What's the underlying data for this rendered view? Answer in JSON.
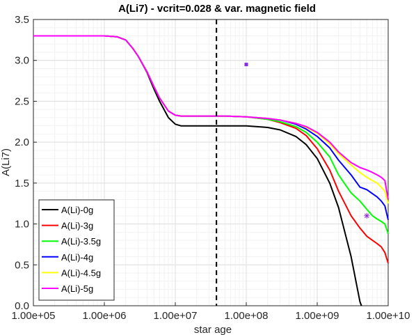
{
  "chart_data": {
    "type": "line",
    "title": "A(Li7) - vcrit=0.028 & var. magnetic field",
    "xlabel": "star age",
    "ylabel": "A(Li7)",
    "xscale": "log",
    "xlim": [
      100000,
      10000000000
    ],
    "ylim": [
      0,
      3.5
    ],
    "x_ticks": [
      100000,
      1000000,
      10000000,
      100000000,
      1000000000,
      10000000000
    ],
    "x_tick_labels": [
      "1.00e+05",
      "1.00e+06",
      "1.00e+07",
      "1.00e+08",
      "1.00e+09",
      "1.00e+10"
    ],
    "y_ticks": [
      0,
      0.5,
      1,
      1.5,
      2,
      2.5,
      3,
      3.5
    ],
    "y_tick_labels": [
      "0.0",
      "0.5",
      "1.0",
      "1.5",
      "2.0",
      "2.5",
      "3.0",
      "3.5"
    ],
    "grid": true,
    "legend_position": "bottom-left",
    "vline": {
      "x": 38000000,
      "style": "dashed",
      "color": "#000000"
    },
    "markers": [
      {
        "x": 100000000,
        "y": 2.95,
        "symbol": "square",
        "color": "#8a2be2"
      },
      {
        "x": 5000000000,
        "y": 1.1,
        "symbol": "asterisk",
        "color": "#8a2be2"
      }
    ],
    "series": [
      {
        "name": "A(Li)-0g",
        "color": "#000000",
        "x": [
          100000,
          1000000,
          1500000,
          2000000,
          2500000,
          3000000,
          4000000,
          5000000,
          6000000,
          8000000,
          10000000,
          12000000,
          15000000,
          20000000,
          30000000,
          50000000,
          100000000,
          200000000,
          300000000,
          500000000,
          700000000,
          1000000000,
          1500000000,
          2000000000,
          3000000000,
          4000000000,
          4200000000
        ],
        "values": [
          3.3,
          3.3,
          3.29,
          3.25,
          3.15,
          3.05,
          2.85,
          2.65,
          2.5,
          2.3,
          2.22,
          2.2,
          2.2,
          2.2,
          2.2,
          2.2,
          2.2,
          2.18,
          2.15,
          2.07,
          1.97,
          1.8,
          1.5,
          1.2,
          0.6,
          0.05,
          0
        ]
      },
      {
        "name": "A(Li)-3g",
        "color": "#ff0000",
        "x": [
          100000,
          1000000,
          1500000,
          2000000,
          2500000,
          3000000,
          4000000,
          5000000,
          6000000,
          8000000,
          10000000,
          12000000,
          15000000,
          20000000,
          30000000,
          50000000,
          100000000,
          200000000,
          300000000,
          500000000,
          700000000,
          1000000000,
          1500000000,
          2000000000,
          3000000000,
          4000000000,
          5000000000,
          6000000000,
          7000000000,
          8000000000,
          9000000000,
          10000000000
        ],
        "values": [
          3.3,
          3.3,
          3.29,
          3.25,
          3.15,
          3.05,
          2.86,
          2.68,
          2.54,
          2.38,
          2.33,
          2.32,
          2.32,
          2.32,
          2.32,
          2.32,
          2.31,
          2.28,
          2.24,
          2.17,
          2.08,
          1.92,
          1.66,
          1.4,
          1.1,
          0.95,
          0.85,
          0.8,
          0.76,
          0.72,
          0.65,
          0.52
        ]
      },
      {
        "name": "A(Li)-3.5g",
        "color": "#00ff00",
        "x": [
          100000,
          1000000,
          1500000,
          2000000,
          2500000,
          3000000,
          4000000,
          5000000,
          6000000,
          8000000,
          10000000,
          12000000,
          15000000,
          20000000,
          30000000,
          50000000,
          100000000,
          200000000,
          300000000,
          500000000,
          700000000,
          1000000000,
          1500000000,
          2000000000,
          3000000000,
          4000000000,
          5000000000,
          6000000000,
          7000000000,
          8000000000,
          9000000000,
          10000000000
        ],
        "values": [
          3.3,
          3.3,
          3.29,
          3.25,
          3.15,
          3.05,
          2.86,
          2.68,
          2.54,
          2.38,
          2.33,
          2.32,
          2.32,
          2.32,
          2.32,
          2.32,
          2.31,
          2.28,
          2.25,
          2.19,
          2.12,
          2.0,
          1.82,
          1.6,
          1.38,
          1.28,
          1.18,
          1.1,
          1.06,
          1.03,
          1.0,
          0.88
        ]
      },
      {
        "name": "A(Li)-4g",
        "color": "#0000ff",
        "x": [
          100000,
          1000000,
          1500000,
          2000000,
          2500000,
          3000000,
          4000000,
          5000000,
          6000000,
          8000000,
          10000000,
          12000000,
          15000000,
          20000000,
          30000000,
          50000000,
          100000000,
          200000000,
          300000000,
          500000000,
          700000000,
          1000000000,
          1500000000,
          2000000000,
          3000000000,
          4000000000,
          5000000000,
          6000000000,
          7000000000,
          8000000000,
          9000000000,
          10000000000
        ],
        "values": [
          3.3,
          3.3,
          3.29,
          3.25,
          3.15,
          3.05,
          2.86,
          2.68,
          2.54,
          2.38,
          2.33,
          2.32,
          2.32,
          2.32,
          2.32,
          2.32,
          2.31,
          2.29,
          2.27,
          2.22,
          2.16,
          2.07,
          1.93,
          1.78,
          1.6,
          1.45,
          1.42,
          1.37,
          1.33,
          1.28,
          1.22,
          1.05
        ]
      },
      {
        "name": "A(Li)-4.5g",
        "color": "#ffff00",
        "x": [
          100000,
          1000000,
          1500000,
          2000000,
          2500000,
          3000000,
          4000000,
          5000000,
          6000000,
          8000000,
          10000000,
          12000000,
          15000000,
          20000000,
          30000000,
          50000000,
          100000000,
          200000000,
          300000000,
          500000000,
          700000000,
          1000000000,
          1500000000,
          2000000000,
          3000000000,
          4000000000,
          5000000000,
          6000000000,
          7000000000,
          8000000000,
          9000000000,
          10000000000
        ],
        "values": [
          3.3,
          3.3,
          3.29,
          3.25,
          3.15,
          3.05,
          2.86,
          2.68,
          2.54,
          2.38,
          2.33,
          2.32,
          2.32,
          2.32,
          2.32,
          2.32,
          2.31,
          2.29,
          2.27,
          2.23,
          2.18,
          2.11,
          1.98,
          1.86,
          1.72,
          1.63,
          1.57,
          1.53,
          1.5,
          1.45,
          1.4,
          1.25
        ]
      },
      {
        "name": "A(Li)-5g",
        "color": "#ff00ff",
        "x": [
          100000,
          1000000,
          1500000,
          2000000,
          2500000,
          3000000,
          4000000,
          5000000,
          6000000,
          8000000,
          10000000,
          12000000,
          15000000,
          20000000,
          30000000,
          50000000,
          100000000,
          200000000,
          300000000,
          500000000,
          700000000,
          1000000000,
          1500000000,
          2000000000,
          3000000000,
          4000000000,
          5000000000,
          6000000000,
          7000000000,
          8000000000,
          9000000000,
          10000000000
        ],
        "values": [
          3.3,
          3.3,
          3.29,
          3.25,
          3.15,
          3.05,
          2.86,
          2.68,
          2.54,
          2.38,
          2.33,
          2.32,
          2.32,
          2.32,
          2.32,
          2.32,
          2.31,
          2.29,
          2.27,
          2.23,
          2.19,
          2.12,
          2.0,
          1.88,
          1.75,
          1.69,
          1.66,
          1.63,
          1.6,
          1.57,
          1.53,
          1.3
        ]
      }
    ]
  }
}
